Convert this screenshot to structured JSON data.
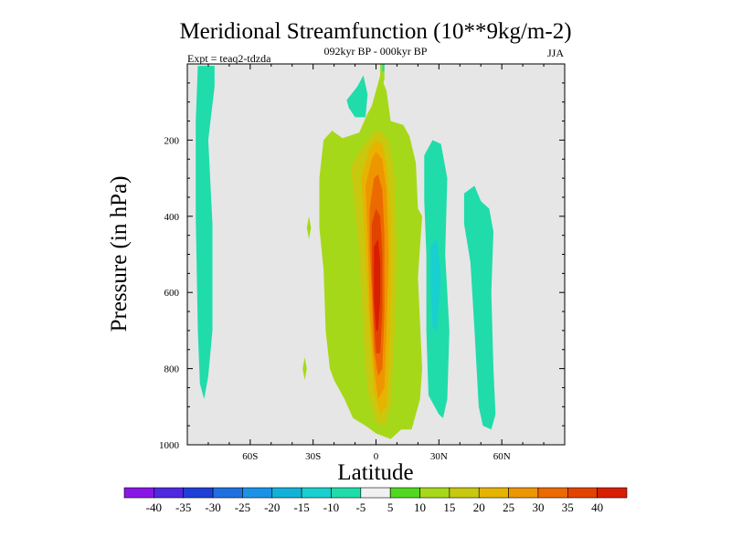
{
  "chart_data": {
    "type": "heatmap",
    "title": "Meridional Streamfunction (10**9kg/m-2)",
    "subtitle_center": "092kyr BP - 000kyr BP",
    "subtitle_left": "Expt = teaq2-tdzda",
    "subtitle_right": "JJA",
    "xlabel": "Latitude",
    "ylabel": "Pressure (in hPa)",
    "xlim": [
      -90,
      90
    ],
    "ylim": [
      1000,
      0
    ],
    "x_ticks": [
      {
        "value": -60,
        "label": "60S"
      },
      {
        "value": -30,
        "label": "30S"
      },
      {
        "value": 0,
        "label": "0"
      },
      {
        "value": 30,
        "label": "30N"
      },
      {
        "value": 60,
        "label": "60N"
      }
    ],
    "y_ticks": [
      {
        "value": 200,
        "label": "200"
      },
      {
        "value": 400,
        "label": "400"
      },
      {
        "value": 600,
        "label": "600"
      },
      {
        "value": 800,
        "label": "800"
      },
      {
        "value": 1000,
        "label": "1000"
      }
    ],
    "background_color": "#e6e6e6",
    "colorbar": {
      "levels": [
        "-40",
        "-35",
        "-30",
        "-25",
        "-20",
        "-15",
        "-10",
        "-5",
        "5",
        "10",
        "15",
        "20",
        "25",
        "30",
        "35",
        "40"
      ],
      "colors": [
        "#8a16e6",
        "#5028e0",
        "#1f3fd6",
        "#1f6fe0",
        "#1a93e6",
        "#12b2d8",
        "#18d0d0",
        "#20dcaa",
        "#f0f0f0",
        "#52d81f",
        "#a6d81a",
        "#c8c80f",
        "#e6b400",
        "#ee9600",
        "#ec6a00",
        "#e24400",
        "#d81e00"
      ]
    },
    "regions": [
      {
        "level": -10,
        "points": [
          [
            -85,
            5
          ],
          [
            -77,
            5
          ],
          [
            -77,
            60
          ],
          [
            -80,
            200
          ],
          [
            -78,
            420
          ],
          [
            -78,
            700
          ],
          [
            -80,
            820
          ],
          [
            -82,
            880
          ],
          [
            -84,
            840
          ],
          [
            -85,
            700
          ],
          [
            -86,
            400
          ],
          [
            -86,
            150
          ]
        ]
      },
      {
        "level": 10,
        "points": [
          [
            -25,
            200
          ],
          [
            -21,
            175
          ],
          [
            -16,
            195
          ],
          [
            -8,
            180
          ],
          [
            -4,
            130
          ],
          [
            -2,
            110
          ],
          [
            2,
            30
          ],
          [
            5,
            70
          ],
          [
            7,
            150
          ],
          [
            13,
            160
          ],
          [
            16,
            190
          ],
          [
            19,
            260
          ],
          [
            20,
            380
          ],
          [
            22,
            400
          ],
          [
            20,
            560
          ],
          [
            22,
            800
          ],
          [
            21,
            880
          ],
          [
            17,
            960
          ],
          [
            12,
            960
          ],
          [
            7,
            985
          ],
          [
            0,
            970
          ],
          [
            -5,
            950
          ],
          [
            -11,
            930
          ],
          [
            -15,
            880
          ],
          [
            -20,
            830
          ],
          [
            -22,
            800
          ],
          [
            -24,
            700
          ],
          [
            -25,
            540
          ],
          [
            -27,
            430
          ],
          [
            -27,
            300
          ]
        ]
      },
      {
        "level": -10,
        "points": [
          [
            -14,
            95
          ],
          [
            -9,
            60
          ],
          [
            -6,
            30
          ],
          [
            -4,
            80
          ],
          [
            -5,
            140
          ],
          [
            -10,
            140
          ],
          [
            -13,
            115
          ]
        ]
      },
      {
        "level": 10,
        "points": [
          [
            -32,
            400
          ],
          [
            -31,
            430
          ],
          [
            -32,
            460
          ],
          [
            -33,
            430
          ]
        ]
      },
      {
        "level": 10,
        "points": [
          [
            -34,
            770
          ],
          [
            -33,
            800
          ],
          [
            -34,
            830
          ],
          [
            -35,
            800
          ]
        ]
      },
      {
        "level": 10,
        "points": [
          [
            2,
            0
          ],
          [
            4,
            0
          ],
          [
            4,
            40
          ],
          [
            3,
            60
          ],
          [
            2,
            40
          ]
        ]
      },
      {
        "level": -10,
        "points": [
          [
            3,
            0
          ],
          [
            4,
            0
          ],
          [
            4,
            20
          ],
          [
            3,
            20
          ]
        ]
      },
      {
        "level": -10,
        "points": [
          [
            23,
            240
          ],
          [
            27,
            200
          ],
          [
            31,
            210
          ],
          [
            34,
            300
          ],
          [
            33,
            500
          ],
          [
            35,
            700
          ],
          [
            34,
            880
          ],
          [
            32,
            930
          ],
          [
            30,
            920
          ],
          [
            25,
            870
          ],
          [
            24,
            700
          ],
          [
            24,
            500
          ],
          [
            23,
            360
          ]
        ]
      },
      {
        "level": -15,
        "points": [
          [
            26,
            480
          ],
          [
            29,
            460
          ],
          [
            31,
            560
          ],
          [
            29,
            700
          ],
          [
            27,
            690
          ],
          [
            26,
            580
          ]
        ]
      },
      {
        "level": -10,
        "points": [
          [
            42,
            340
          ],
          [
            47,
            320
          ],
          [
            50,
            360
          ],
          [
            54,
            380
          ],
          [
            56,
            440
          ],
          [
            55,
            600
          ],
          [
            56,
            800
          ],
          [
            57,
            920
          ],
          [
            55,
            960
          ],
          [
            51,
            950
          ],
          [
            49,
            900
          ],
          [
            47,
            700
          ],
          [
            45,
            520
          ],
          [
            42,
            420
          ]
        ]
      },
      {
        "level": 15,
        "points": [
          [
            -12,
            270
          ],
          [
            -9,
            240
          ],
          [
            -4,
            200
          ],
          [
            0,
            175
          ],
          [
            3,
            180
          ],
          [
            6,
            200
          ],
          [
            9,
            300
          ],
          [
            10,
            500
          ],
          [
            9,
            700
          ],
          [
            7,
            900
          ],
          [
            4,
            950
          ],
          [
            0,
            940
          ],
          [
            -4,
            860
          ],
          [
            -6,
            700
          ],
          [
            -8,
            500
          ],
          [
            -10,
            380
          ]
        ]
      },
      {
        "level": 20,
        "points": [
          [
            -7,
            300
          ],
          [
            -3,
            220
          ],
          [
            0,
            200
          ],
          [
            3,
            210
          ],
          [
            5,
            260
          ],
          [
            7,
            400
          ],
          [
            7,
            600
          ],
          [
            6,
            800
          ],
          [
            5,
            900
          ],
          [
            2,
            920
          ],
          [
            -1,
            860
          ],
          [
            -3,
            700
          ],
          [
            -5,
            500
          ],
          [
            -6,
            400
          ]
        ]
      },
      {
        "level": 25,
        "points": [
          [
            -5,
            320
          ],
          [
            -2,
            250
          ],
          [
            0,
            230
          ],
          [
            3,
            250
          ],
          [
            5,
            330
          ],
          [
            6,
            500
          ],
          [
            5,
            700
          ],
          [
            4,
            850
          ],
          [
            1,
            880
          ],
          [
            -1,
            800
          ],
          [
            -3,
            650
          ],
          [
            -4,
            450
          ]
        ]
      },
      {
        "level": 30,
        "points": [
          [
            -3,
            380
          ],
          [
            -1,
            300
          ],
          [
            1,
            290
          ],
          [
            3,
            330
          ],
          [
            4,
            450
          ],
          [
            4,
            650
          ],
          [
            3,
            800
          ],
          [
            1,
            820
          ],
          [
            -1,
            750
          ],
          [
            -2,
            600
          ],
          [
            -3,
            480
          ]
        ]
      },
      {
        "level": 35,
        "points": [
          [
            -2,
            420
          ],
          [
            0,
            380
          ],
          [
            2,
            400
          ],
          [
            3,
            500
          ],
          [
            3,
            650
          ],
          [
            2,
            760
          ],
          [
            0,
            760
          ],
          [
            -1,
            680
          ],
          [
            -2,
            550
          ]
        ]
      },
      {
        "level": 40,
        "points": [
          [
            -1,
            480
          ],
          [
            1,
            460
          ],
          [
            2,
            520
          ],
          [
            2,
            620
          ],
          [
            1,
            700
          ],
          [
            0,
            700
          ],
          [
            -1,
            620
          ]
        ]
      }
    ]
  }
}
